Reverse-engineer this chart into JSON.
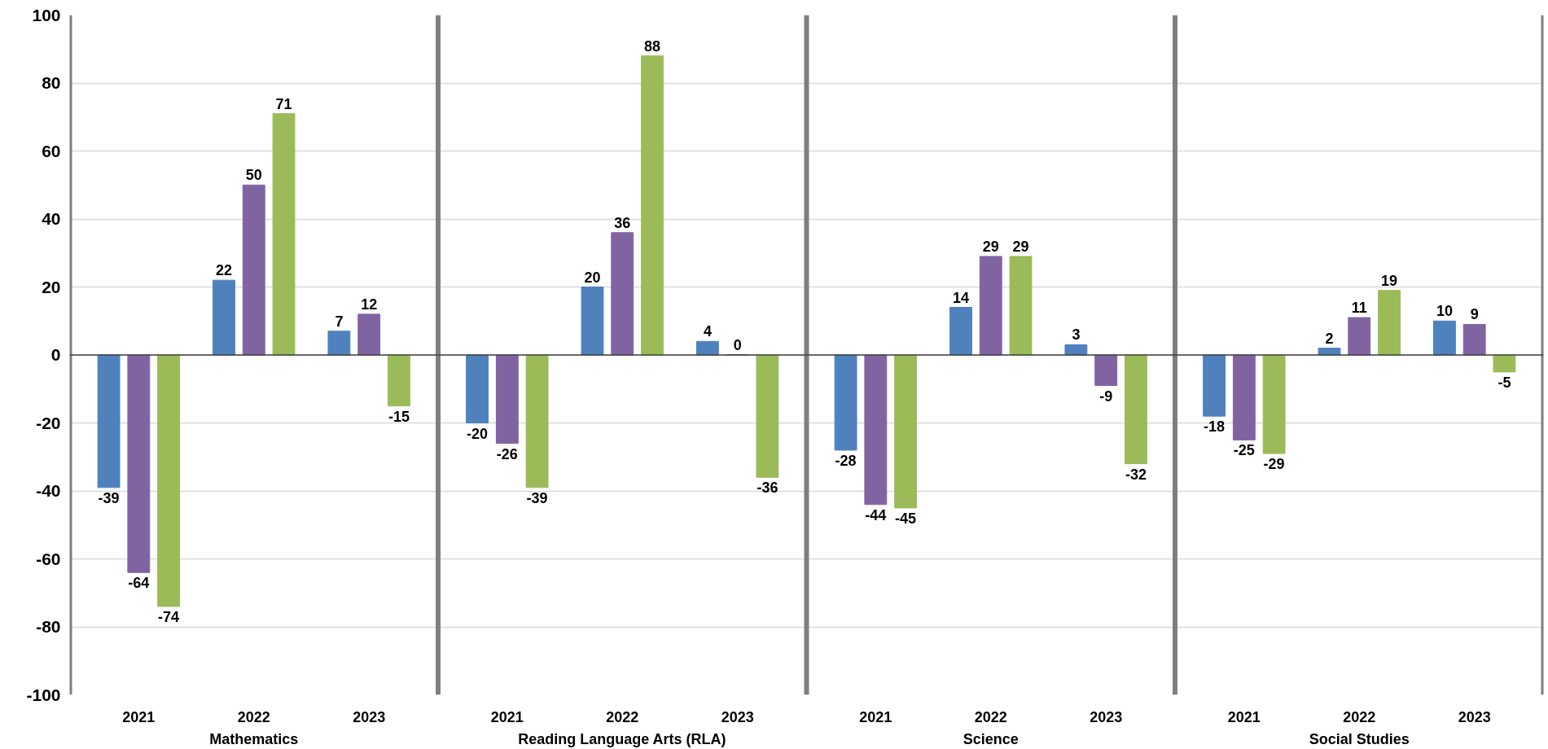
{
  "chart_data": {
    "type": "bar",
    "categories": [
      "2021",
      "2022",
      "2023",
      "2021",
      "2022",
      "2023",
      "2021",
      "2022",
      "2023",
      "2021",
      "2022",
      "2023"
    ],
    "annotations": [
      "Mathematics",
      "Reading Language Arts (RLA)",
      "Science",
      "Social Studies"
    ],
    "series": [
      {
        "color": "#4f81bd",
        "values": [
          -39,
          22,
          7,
          -20,
          20,
          4,
          -28,
          14,
          3,
          -18,
          2,
          10
        ]
      },
      {
        "color": "#8064a2",
        "values": [
          -64,
          50,
          12,
          -26,
          36,
          0,
          -44,
          29,
          -9,
          -25,
          11,
          9
        ]
      },
      {
        "color": "#9bbb59",
        "values": [
          -74,
          71,
          -15,
          -39,
          88,
          -36,
          -45,
          29,
          -32,
          -29,
          19,
          -5
        ]
      }
    ],
    "ylim": [
      -100,
      100
    ],
    "yticks": [
      -100,
      -80,
      -60,
      -40,
      -20,
      0,
      20,
      40,
      60,
      80,
      100
    ],
    "grid": "y",
    "data_labels": true
  }
}
